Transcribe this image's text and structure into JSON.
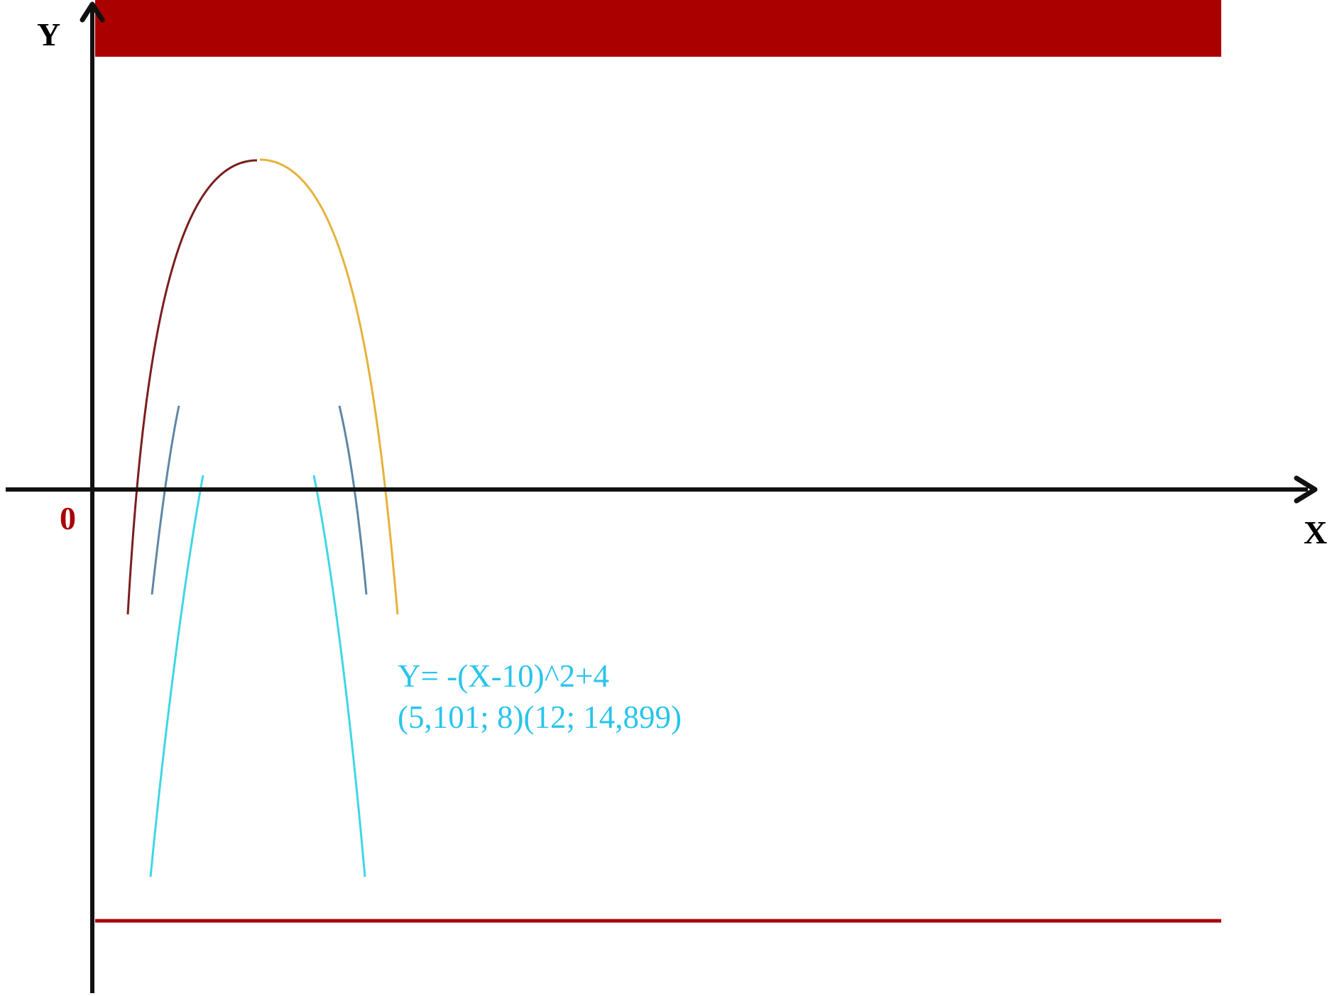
{
  "labels": {
    "y_axis": "Y",
    "x_axis": "X",
    "origin": "0"
  },
  "equation": {
    "formula": "Y= -(X-10)^2+4",
    "points": "(5,101; 8)(12; 14,899)"
  },
  "colors": {
    "banner": "#aa0000",
    "bottom_rule": "#aa0000",
    "axes": "#111111",
    "origin_label": "#aa0000",
    "axis_labels": "#000000",
    "equation_text": "#29c4ec",
    "curve_left_outer": "#7a1e1e",
    "curve_right_outer": "#e6b23a",
    "curve_middle": "#5e86a6",
    "curve_inner": "#3fd6e6"
  }
}
